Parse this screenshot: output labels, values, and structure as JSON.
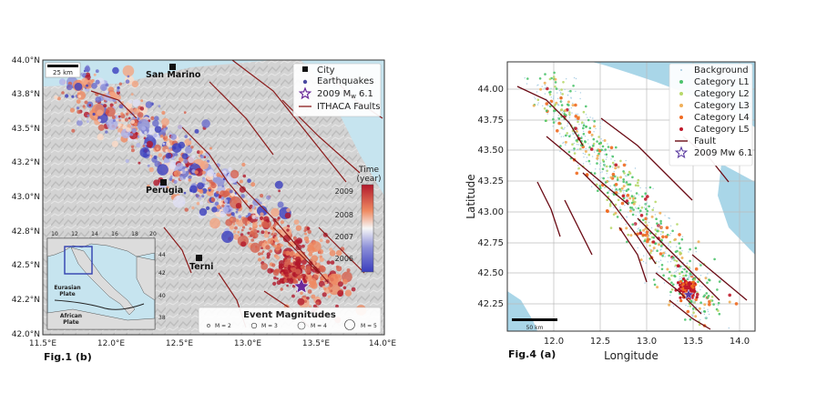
{
  "figure_left": {
    "caption": "Fig.1 (b)",
    "x_ticks": [
      "11.5°E",
      "12.0°E",
      "12.5°E",
      "13.0°E",
      "13.5°E",
      "14.0°E"
    ],
    "y_ticks": [
      "44.0°N",
      "43.8°N",
      "43.5°N",
      "43.2°N",
      "43.0°N",
      "42.8°N",
      "42.5°N",
      "42.2°N",
      "42.0°N"
    ],
    "scale_bar": "25 km",
    "cities": [
      "San Marino",
      "Perugia",
      "Terni"
    ],
    "legend": {
      "items": [
        "City",
        "Earthquakes",
        "2009 M",
        "6.1",
        "ITHACA Faults"
      ],
      "mw_sub": "w"
    },
    "colorbar": {
      "title_1": "Time",
      "title_2": "(year)",
      "ticks": [
        "2009",
        "2008",
        "2007",
        "2006"
      ],
      "colors": {
        "top": "#b2182b",
        "mid": "#f7f7f7",
        "bottom": "#3a3dbe"
      }
    },
    "magnitudes": {
      "title": "Event Magnitudes",
      "labels": [
        "M = 2",
        "M = 3",
        "M = 4",
        "M = 5"
      ]
    },
    "inset": {
      "x_ticks": [
        "10",
        "12",
        "14",
        "16",
        "18",
        "20"
      ],
      "y_ticks": [
        "44",
        "42",
        "40",
        "38"
      ],
      "plates": [
        "Eurasian\nPlate",
        "African\nPlate"
      ],
      "plate_1a": "Eurasian",
      "plate_1b": "Plate",
      "plate_2a": "African",
      "plate_2b": "Plate"
    },
    "colors": {
      "sea": "#c6e4ef",
      "land": "#d4d4d4",
      "fault": "#8b1a1a",
      "star": "#6a2a9a"
    }
  },
  "figure_right": {
    "caption": "Fig.4 (a)",
    "xlabel": "Longitude",
    "ylabel": "Latitude",
    "x_ticks": [
      "12.0",
      "12.5",
      "13.0",
      "13.5",
      "14.0"
    ],
    "y_ticks": [
      "44.00",
      "43.75",
      "43.50",
      "43.25",
      "43.00",
      "42.75",
      "42.50",
      "42.25"
    ],
    "scale_bar": "50 km",
    "legend": [
      {
        "label": "Background",
        "color": "#9ec8e0"
      },
      {
        "label": "Category L1",
        "color": "#4cc36c"
      },
      {
        "label": "Category L2",
        "color": "#b7d86a"
      },
      {
        "label": "Category L3",
        "color": "#f0b05a"
      },
      {
        "label": "Category L4",
        "color": "#f06a20"
      },
      {
        "label": "Category L5",
        "color": "#c0182a"
      },
      {
        "label": "Fault",
        "color": "#6a0a14"
      },
      {
        "label": "2009 Mw 6.1",
        "color": "#5a3aa0"
      }
    ],
    "colors": {
      "sea": "#a9d6e8",
      "land": "#ffffff",
      "grid": "#bbbbbb"
    }
  }
}
